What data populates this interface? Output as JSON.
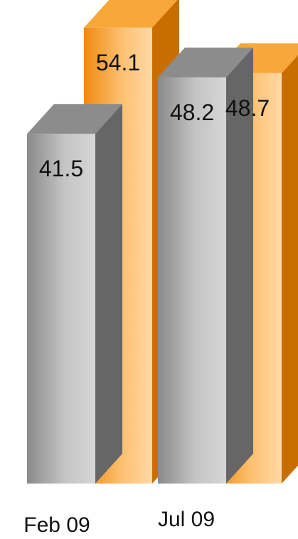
{
  "chart_data": {
    "type": "bar",
    "categories": [
      "Feb 09",
      "Jul 09"
    ],
    "series": [
      {
        "values": [
          54.1,
          48.7
        ],
        "color": "#F7A030"
      },
      {
        "values": [
          41.5,
          48.2
        ],
        "color": "#9A9A9A"
      }
    ],
    "data_labels": true,
    "grid": false,
    "legend": "none",
    "three_d": true
  }
}
